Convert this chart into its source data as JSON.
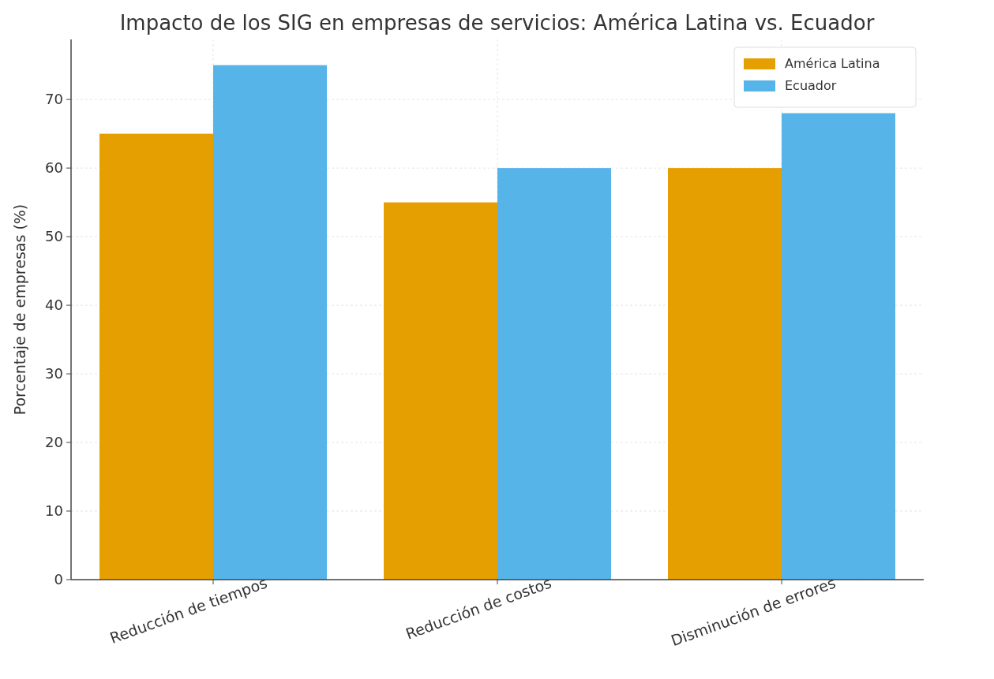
{
  "chart_data": {
    "type": "bar",
    "title": "Impacto de los SIG en empresas de servicios: América Latina vs. Ecuador",
    "ylabel": "Porcentaje de empresas (%)",
    "categories": [
      "Reducción de tiempos",
      "Reducción de costos",
      "Disminución de errores"
    ],
    "series": [
      {
        "name": "América Latina",
        "color": "#e69f00",
        "values": [
          65,
          55,
          60
        ]
      },
      {
        "name": "Ecuador",
        "color": "#56b4e9",
        "values": [
          75,
          60,
          68
        ]
      }
    ],
    "ylim": [
      0,
      78.75
    ],
    "yticks": [
      0,
      10,
      20,
      30,
      40,
      50,
      60,
      70
    ],
    "grid": true,
    "legend": "top right"
  }
}
